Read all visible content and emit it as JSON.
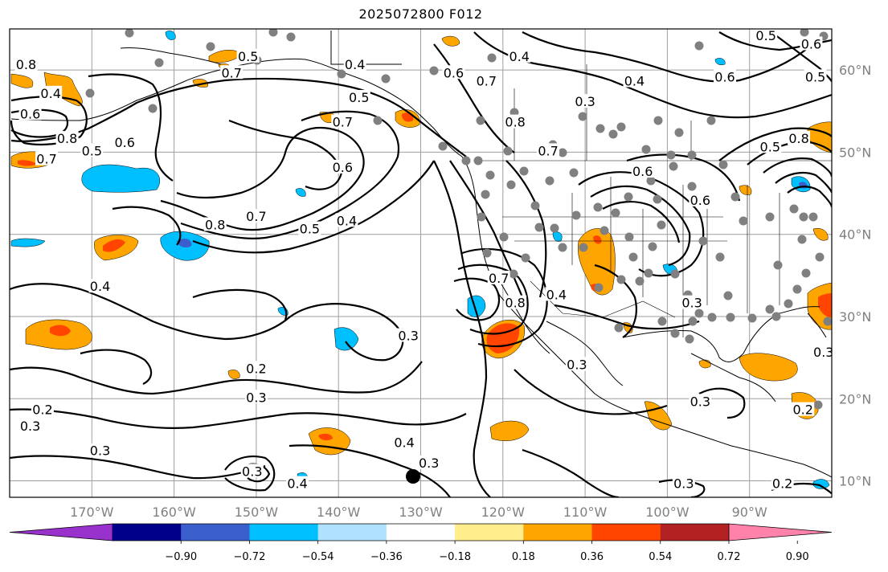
{
  "title": "2025072800 F012",
  "map": {
    "lon_range": [
      -180,
      -80
    ],
    "lat_range": [
      8,
      65
    ],
    "lon_ticks": [
      {
        "lon": -170,
        "label": "170°W"
      },
      {
        "lon": -160,
        "label": "160°W"
      },
      {
        "lon": -150,
        "label": "150°W"
      },
      {
        "lon": -140,
        "label": "140°W"
      },
      {
        "lon": -130,
        "label": "130°W"
      },
      {
        "lon": -120,
        "label": "120°W"
      },
      {
        "lon": -110,
        "label": "110°W"
      },
      {
        "lon": -100,
        "label": "100°W"
      },
      {
        "lon": -90,
        "label": "90°W"
      }
    ],
    "lat_ticks": [
      {
        "lat": 10,
        "label": "10°N"
      },
      {
        "lat": 20,
        "label": "20°N"
      },
      {
        "lat": 30,
        "label": "30°N"
      },
      {
        "lat": 40,
        "label": "40°N"
      },
      {
        "lat": 50,
        "label": "50°N"
      },
      {
        "lat": 60,
        "label": "60°N"
      }
    ],
    "contour_labels": [
      {
        "text": "0.8",
        "lon": -178,
        "lat": 60.5
      },
      {
        "text": "0.4",
        "lon": -175,
        "lat": 57
      },
      {
        "text": "0.6",
        "lon": -177.5,
        "lat": 54.5
      },
      {
        "text": "0.8",
        "lon": -173,
        "lat": 51.5
      },
      {
        "text": "0.7",
        "lon": -175.5,
        "lat": 49
      },
      {
        "text": "0.5",
        "lon": -170,
        "lat": 50
      },
      {
        "text": "0.6",
        "lon": -166,
        "lat": 51
      },
      {
        "text": "0.7",
        "lon": -153,
        "lat": 59.5
      },
      {
        "text": "0.5",
        "lon": -151,
        "lat": 61.5
      },
      {
        "text": "0.5",
        "lon": -137.5,
        "lat": 56.5
      },
      {
        "text": "0.4",
        "lon": -138,
        "lat": 60.5
      },
      {
        "text": "0.7",
        "lon": -139.5,
        "lat": 53.5
      },
      {
        "text": "0.6",
        "lon": -139.5,
        "lat": 48
      },
      {
        "text": "0.8",
        "lon": -155,
        "lat": 41
      },
      {
        "text": "0.7",
        "lon": -150,
        "lat": 42
      },
      {
        "text": "0.5",
        "lon": -143.5,
        "lat": 40.5
      },
      {
        "text": "0.4",
        "lon": -139,
        "lat": 41.5
      },
      {
        "text": "0.4",
        "lon": -169,
        "lat": 33.5
      },
      {
        "text": "0.3",
        "lon": -131.5,
        "lat": 27.5
      },
      {
        "text": "0.2",
        "lon": -150,
        "lat": 23.5
      },
      {
        "text": "0.3",
        "lon": -150,
        "lat": 20
      },
      {
        "text": "0.2",
        "lon": -176,
        "lat": 18.5
      },
      {
        "text": "0.3",
        "lon": -177.5,
        "lat": 16.5
      },
      {
        "text": "0.3",
        "lon": -169,
        "lat": 13.5
      },
      {
        "text": "0.4",
        "lon": -132,
        "lat": 14.5
      },
      {
        "text": "0.3",
        "lon": -129,
        "lat": 12
      },
      {
        "text": "0.3",
        "lon": -150.5,
        "lat": 11
      },
      {
        "text": "0.4",
        "lon": -145,
        "lat": 9.5
      },
      {
        "text": "0.4",
        "lon": -118,
        "lat": 61.5
      },
      {
        "text": "0.7",
        "lon": -122,
        "lat": 58.5
      },
      {
        "text": "0.6",
        "lon": -126,
        "lat": 59.5
      },
      {
        "text": "0.8",
        "lon": -118.5,
        "lat": 53.5
      },
      {
        "text": "0.3",
        "lon": -110,
        "lat": 56
      },
      {
        "text": "0.4",
        "lon": -104,
        "lat": 58.5
      },
      {
        "text": "0.6",
        "lon": -93,
        "lat": 59
      },
      {
        "text": "0.5",
        "lon": -88,
        "lat": 64
      },
      {
        "text": "0.6",
        "lon": -82.5,
        "lat": 63
      },
      {
        "text": "0.5",
        "lon": -82,
        "lat": 59
      },
      {
        "text": "0.7",
        "lon": -114.5,
        "lat": 50
      },
      {
        "text": "0.6",
        "lon": -103,
        "lat": 47.5
      },
      {
        "text": "0.6",
        "lon": -96,
        "lat": 44
      },
      {
        "text": "0.5",
        "lon": -87.5,
        "lat": 50.5
      },
      {
        "text": "0.8",
        "lon": -84,
        "lat": 51.5
      },
      {
        "text": "0.4",
        "lon": -113.5,
        "lat": 32.5
      },
      {
        "text": "0.8",
        "lon": -118.5,
        "lat": 31.5
      },
      {
        "text": "0.7",
        "lon": -120.5,
        "lat": 34.5
      },
      {
        "text": "0.3",
        "lon": -97,
        "lat": 31.5
      },
      {
        "text": "0.3",
        "lon": -111,
        "lat": 24
      },
      {
        "text": "0.3",
        "lon": -96,
        "lat": 19.5
      },
      {
        "text": "0.2",
        "lon": -83.5,
        "lat": 18.5
      },
      {
        "text": "0.3",
        "lon": -98,
        "lat": 9.5
      },
      {
        "text": "0.2",
        "lon": -86,
        "lat": 9.5
      },
      {
        "text": "0.3",
        "lon": -81,
        "lat": 25.5
      }
    ]
  },
  "colorbar": {
    "colors": [
      "#9932cc",
      "#00008b",
      "#3a5fcd",
      "#00bfff",
      "#b0e2ff",
      "#ffffff",
      "#ffec8b",
      "#ffa500",
      "#ff4500",
      "#b22222",
      "#ff82ab"
    ],
    "tick_labels": [
      "−0.90",
      "−0.72",
      "−0.54",
      "−0.36",
      "−0.18",
      "0.18",
      "0.36",
      "0.54",
      "0.72",
      "0.90"
    ]
  }
}
